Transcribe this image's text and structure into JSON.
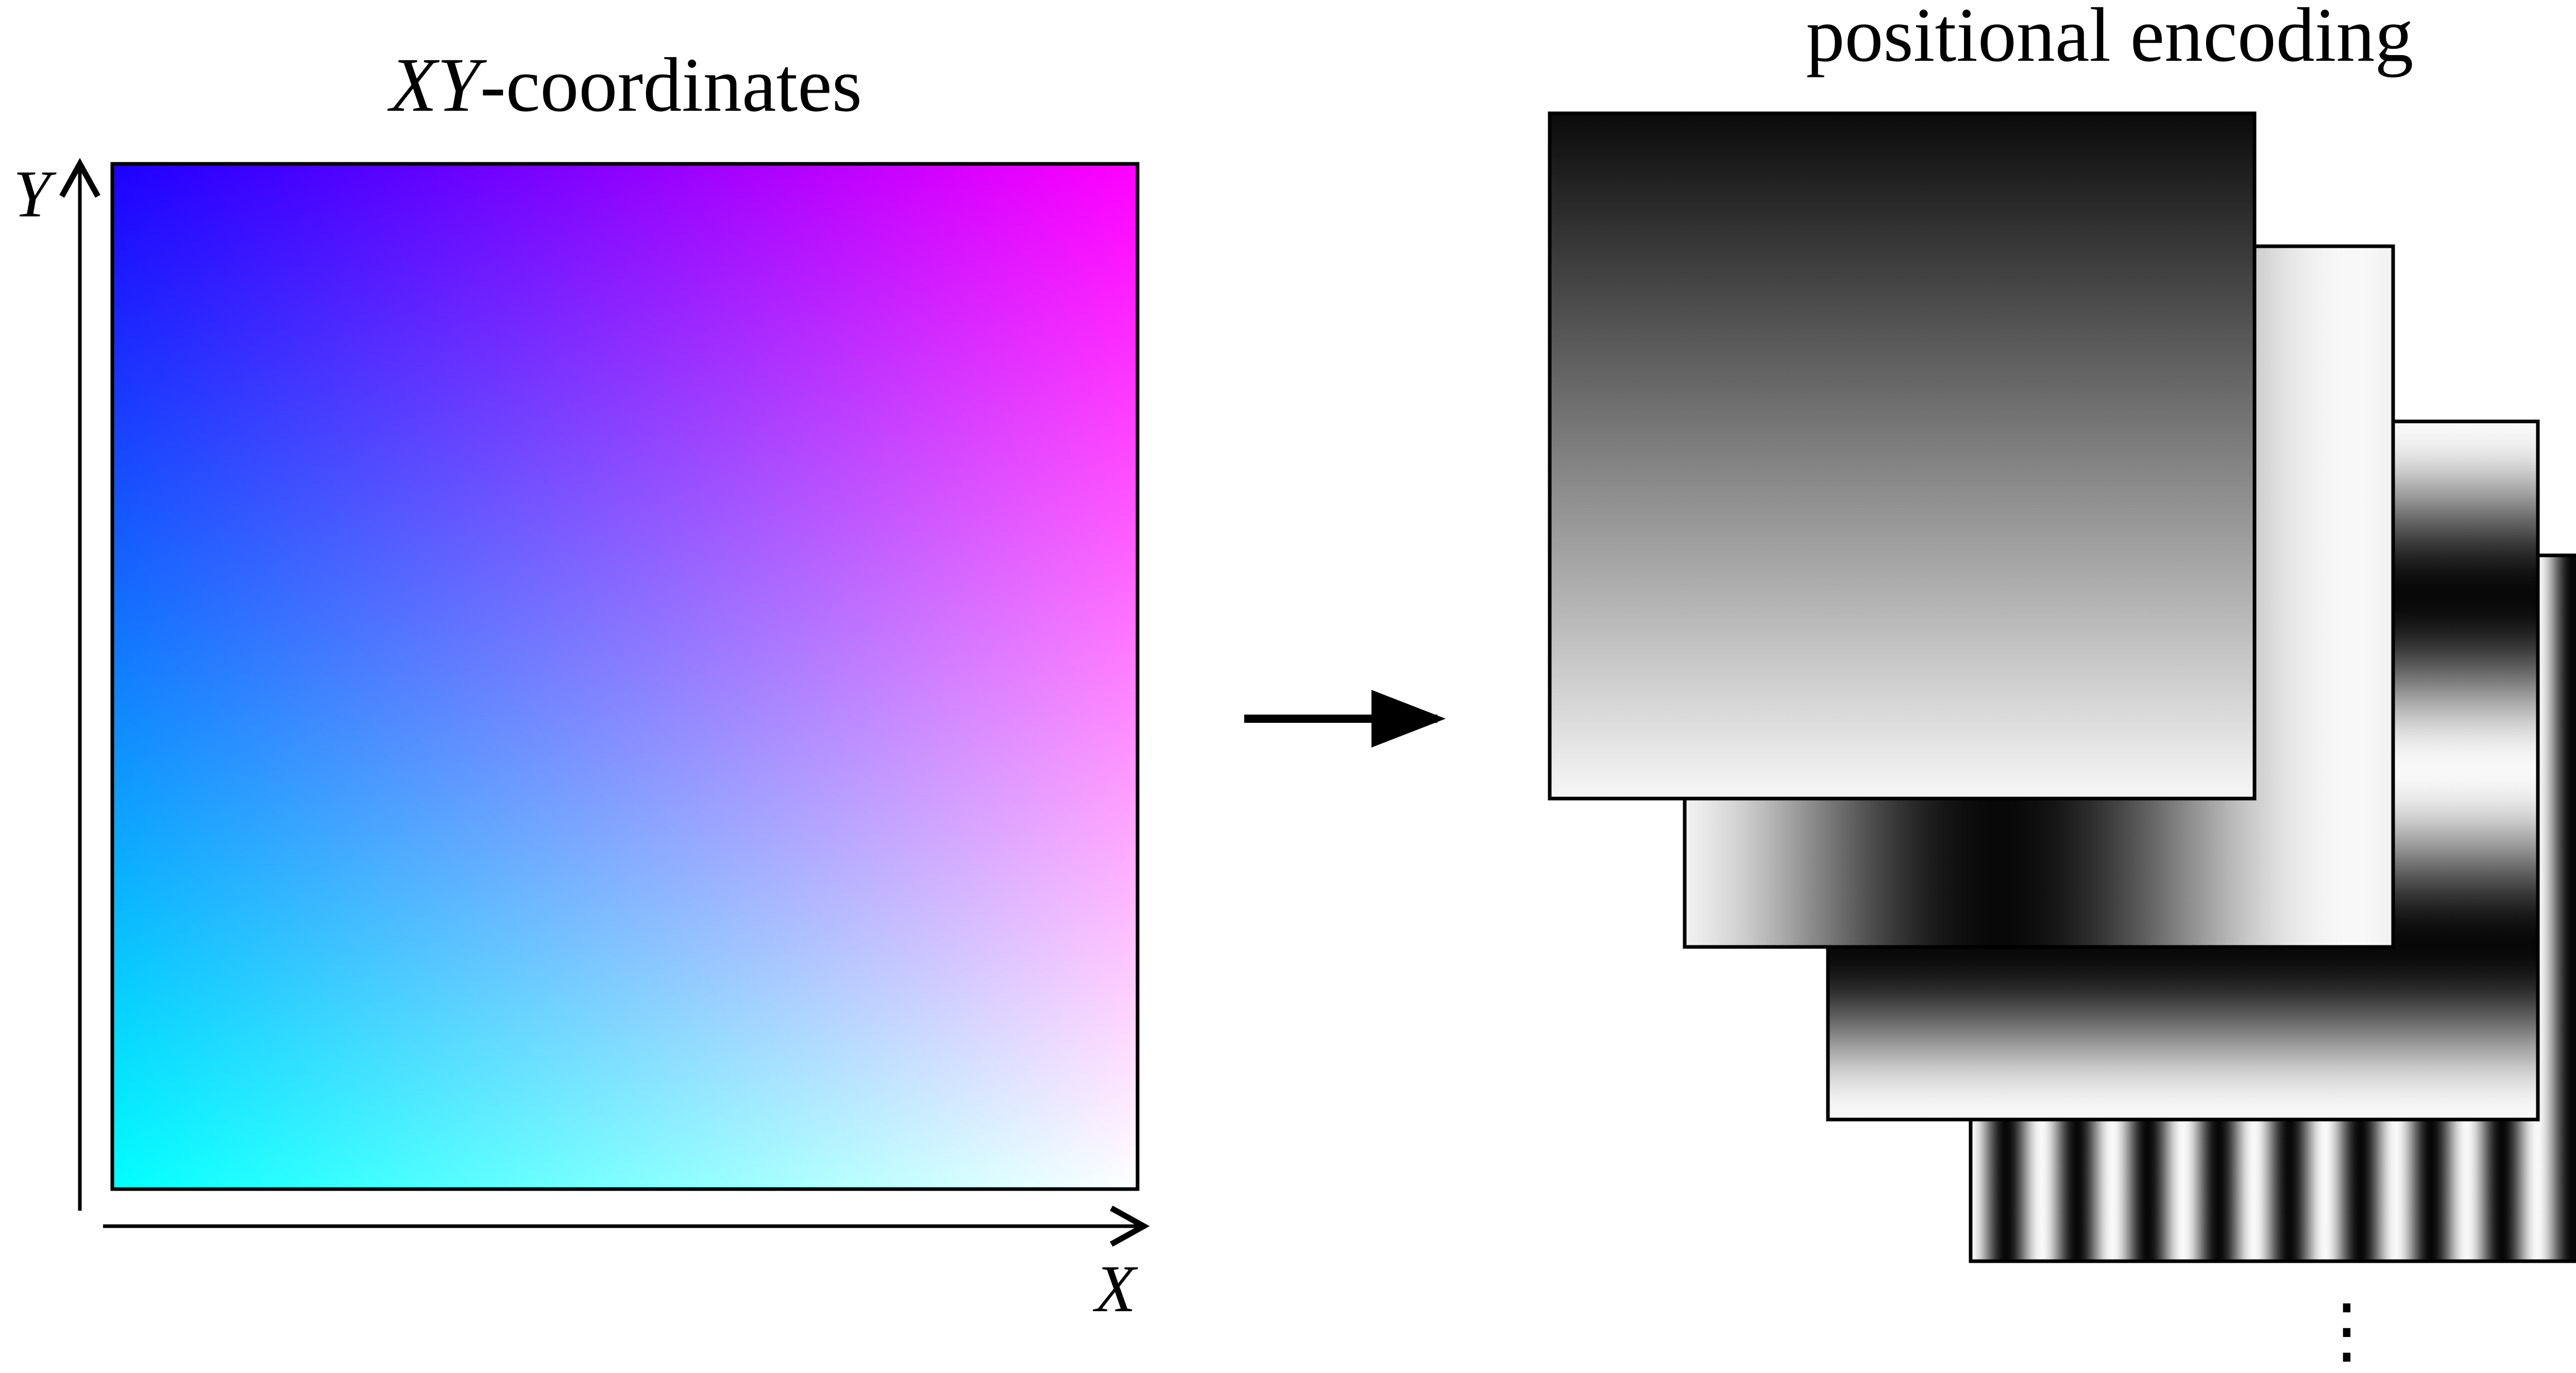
{
  "left_panel": {
    "title_var": "XY",
    "title_suffix": "-coordinates",
    "y_axis_label": "Y",
    "x_axis_label": "X",
    "corner_colors": {
      "top_left": "#1e00ff",
      "top_right": "#ff00ff",
      "bottom_left": "#00ffff",
      "bottom_right": "#ffffff"
    }
  },
  "right_panel": {
    "title": "positional encoding",
    "continuation": "⋮",
    "layers": [
      {
        "name": "vertical-ramp",
        "pattern": "linear-y"
      },
      {
        "name": "horizontal-wave",
        "pattern": "cos-x",
        "periods": 1
      },
      {
        "name": "vertical-wave",
        "pattern": "cos-y",
        "periods": 2
      },
      {
        "name": "horizontal-stripes",
        "pattern": "cos-x",
        "periods": 10
      }
    ]
  },
  "colors": {
    "frame": "#000000",
    "arrow": "#000000"
  }
}
